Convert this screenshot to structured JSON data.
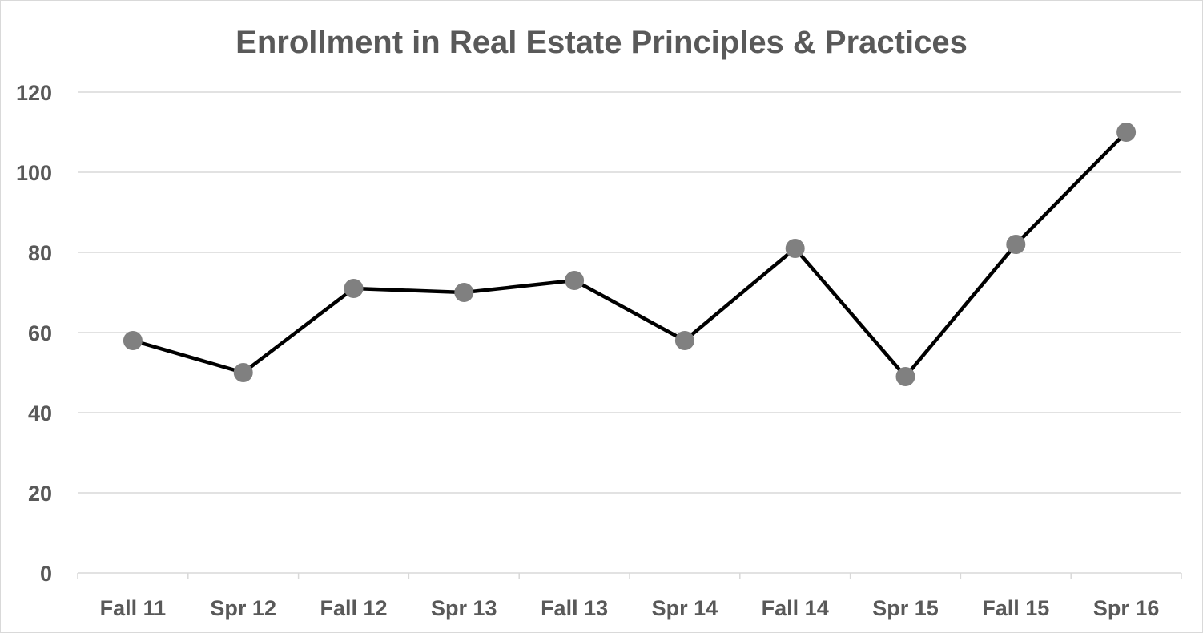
{
  "chart_data": {
    "type": "line",
    "title": "Enrollment in Real Estate Principles & Practices",
    "xlabel": "",
    "ylabel": "",
    "categories": [
      "Fall 11",
      "Spr 12",
      "Fall 12",
      "Spr 13",
      "Fall 13",
      "Spr 14",
      "Fall 14",
      "Spr 15",
      "Fall 15",
      "Spr 16"
    ],
    "series": [
      {
        "values": [
          58,
          50,
          71,
          70,
          73,
          58,
          81,
          49,
          82,
          110
        ]
      }
    ],
    "ylim": [
      0,
      120
    ],
    "yticks": [
      0,
      20,
      40,
      60,
      80,
      100,
      120
    ],
    "grid": true,
    "legend": "none",
    "colors": {
      "line": "#000000",
      "marker": "#808080",
      "grid": "#d9d9d9",
      "text": "#595959"
    }
  }
}
